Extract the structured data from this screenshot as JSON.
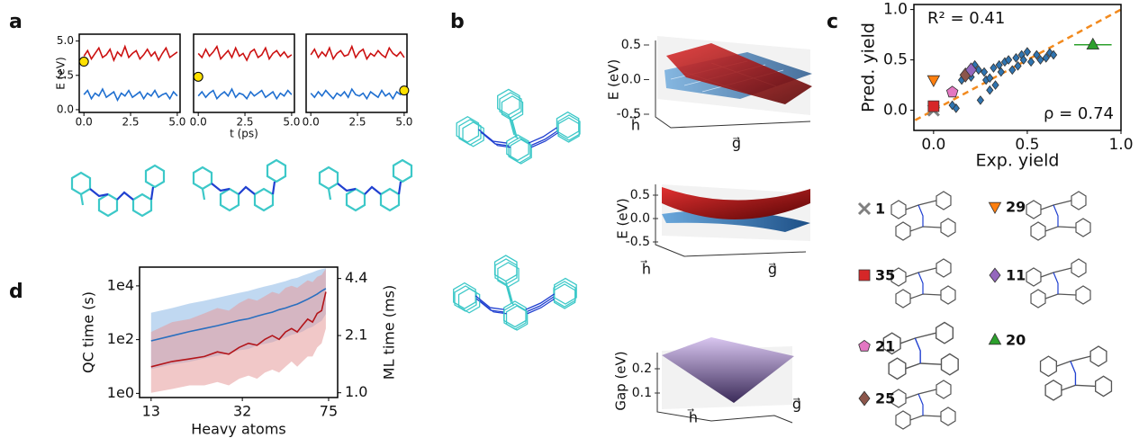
{
  "panel_labels": [
    "a",
    "b",
    "c",
    "d"
  ],
  "chart_data": [
    {
      "type": "line",
      "ylabel": "E (eV)",
      "x": [
        0,
        0.2,
        0.4,
        0.6,
        0.8,
        1,
        1.2,
        1.4,
        1.6,
        1.8,
        2,
        2.2,
        2.4,
        2.6,
        2.8,
        3,
        3.2,
        3.4,
        3.6,
        3.8,
        4,
        4.2,
        4.4,
        4.6,
        4.8,
        5
      ],
      "xlim": [
        -0.25,
        5.15
      ],
      "xticks": [
        {
          "value": 0,
          "label": "0.0"
        },
        2.5,
        {
          "value": 5,
          "label": "5.0"
        }
      ],
      "ylim": [
        -0.2,
        5.5
      ],
      "yticks": [
        {
          "value": 0,
          "label": "0.0"
        },
        2.5,
        {
          "value": 5,
          "label": "5.0"
        }
      ],
      "series": [
        {
          "color": "#cc1111",
          "values": [
            3.9,
            4.3,
            3.7,
            4.1,
            4.5,
            3.8,
            4.0,
            4.4,
            3.6,
            4.2,
            3.9,
            4.6,
            3.8,
            4.1,
            4.3,
            3.7,
            4.0,
            4.4,
            3.9,
            4.2,
            3.6,
            4.1,
            4.5,
            3.8,
            4.0,
            4.2
          ]
        },
        {
          "color": "#1f6fd0",
          "values": [
            1.1,
            1.4,
            0.8,
            1.2,
            1.0,
            1.5,
            0.9,
            1.1,
            1.3,
            0.7,
            1.2,
            1.0,
            1.4,
            0.9,
            1.1,
            1.3,
            0.8,
            1.2,
            1.0,
            1.4,
            0.9,
            1.1,
            1.2,
            0.8,
            1.3,
            1.0
          ]
        }
      ],
      "highlight": {
        "x": 0,
        "y": 3.5,
        "color": "#ffe100"
      }
    },
    {
      "type": "line",
      "xlabel": "t (ps)",
      "x": [
        0,
        0.2,
        0.4,
        0.6,
        0.8,
        1,
        1.2,
        1.4,
        1.6,
        1.8,
        2,
        2.2,
        2.4,
        2.6,
        2.8,
        3,
        3.2,
        3.4,
        3.6,
        3.8,
        4,
        4.2,
        4.4,
        4.6,
        4.8,
        5
      ],
      "xlim": [
        -0.25,
        5.15
      ],
      "xticks": [
        {
          "value": 0,
          "label": "0.0"
        },
        2.5,
        {
          "value": 5,
          "label": "5.0"
        }
      ],
      "ylim": [
        -0.2,
        5.5
      ],
      "series": [
        {
          "color": "#cc1111",
          "values": [
            4.1,
            3.8,
            4.4,
            3.9,
            4.2,
            4.6,
            3.7,
            4.0,
            4.3,
            3.8,
            4.5,
            3.9,
            4.1,
            3.6,
            4.2,
            4.4,
            3.8,
            4.0,
            4.5,
            3.7,
            4.1,
            4.3,
            3.9,
            4.2,
            3.8,
            4.0
          ]
        },
        {
          "color": "#1f6fd0",
          "values": [
            1.0,
            1.3,
            0.9,
            1.2,
            1.4,
            0.8,
            1.1,
            1.3,
            1.0,
            1.5,
            0.9,
            1.2,
            1.1,
            0.8,
            1.3,
            1.0,
            1.2,
            1.4,
            0.9,
            1.1,
            1.3,
            0.8,
            1.2,
            1.0,
            1.4,
            1.1
          ]
        }
      ],
      "highlight": {
        "x": 0,
        "y": 2.4,
        "color": "#ffe100"
      }
    },
    {
      "type": "line",
      "x": [
        0,
        0.2,
        0.4,
        0.6,
        0.8,
        1,
        1.2,
        1.4,
        1.6,
        1.8,
        2,
        2.2,
        2.4,
        2.6,
        2.8,
        3,
        3.2,
        3.4,
        3.6,
        3.8,
        4,
        4.2,
        4.4,
        4.6,
        4.8,
        5
      ],
      "xlim": [
        -0.25,
        5.15
      ],
      "xticks": [
        {
          "value": 0,
          "label": "0.0"
        },
        2.5,
        {
          "value": 5,
          "label": "5.0"
        }
      ],
      "ylim": [
        -0.2,
        5.5
      ],
      "series": [
        {
          "color": "#cc1111",
          "values": [
            4.0,
            4.4,
            3.8,
            4.2,
            3.9,
            4.5,
            3.7,
            4.1,
            4.3,
            3.9,
            4.0,
            4.6,
            3.8,
            4.2,
            4.4,
            3.7,
            4.1,
            3.9,
            4.3,
            4.0,
            3.8,
            4.5,
            4.1,
            3.9,
            4.2,
            3.8
          ]
        },
        {
          "color": "#1f6fd0",
          "values": [
            1.2,
            0.9,
            1.3,
            1.0,
            1.4,
            1.1,
            0.8,
            1.2,
            1.0,
            1.3,
            0.9,
            1.5,
            1.1,
            1.0,
            1.2,
            0.8,
            1.3,
            1.1,
            0.9,
            1.4,
            1.0,
            1.2,
            0.8,
            1.3,
            1.1,
            1.4
          ]
        }
      ],
      "highlight": {
        "x": 5,
        "y": 1.4,
        "color": "#ffe100"
      }
    },
    {
      "type": "surface",
      "ylabel": "E (eV)",
      "ylim": [
        -0.6,
        0.6
      ],
      "yticks": [
        0.5,
        {
          "value": 0,
          "label": "0.0"
        },
        -0.5
      ],
      "xlabel": "h⃗",
      "zlabel": "g⃗"
    },
    {
      "type": "surface",
      "ylabel": "E (eV)",
      "ylim": [
        -0.6,
        0.6
      ],
      "yticks": [
        0.5,
        {
          "value": 0,
          "label": "0.0"
        },
        -0.5
      ],
      "xlabel": "h⃗",
      "zlabel": "g⃗"
    },
    {
      "type": "surface",
      "ylabel": "Gap (eV)",
      "ylim": [
        0.05,
        0.25
      ],
      "yticks": [
        0.2,
        0.1
      ],
      "xlabel": "h⃗",
      "zlabel": "g⃗"
    },
    {
      "type": "scatter",
      "xlabel": "Exp. yield",
      "ylabel": "Pred. yield",
      "xlim": [
        -0.105,
        1.0
      ],
      "ylim": [
        -0.2,
        1.05
      ],
      "xticks": [
        {
          "value": 0,
          "label": "0.0"
        },
        0.5,
        {
          "value": 1,
          "label": "1.0"
        }
      ],
      "yticks": [
        {
          "value": 0,
          "label": "0.0"
        },
        0.5,
        {
          "value": 1,
          "label": "1.0"
        }
      ],
      "diagonal": {
        "color": "#f28a1e"
      },
      "annotations": [
        "R² = 0.41",
        "ρ = 0.74"
      ],
      "points": {
        "color": "#2f74b0",
        "x": [
          0.12,
          0.15,
          0.18,
          0.2,
          0.22,
          0.24,
          0.25,
          0.27,
          0.28,
          0.3,
          0.32,
          0.33,
          0.35,
          0.36,
          0.38,
          0.4,
          0.42,
          0.44,
          0.45,
          0.47,
          0.48,
          0.5,
          0.52,
          0.55,
          0.57,
          0.6,
          0.62,
          0.64,
          0.1,
          0.3
        ],
        "y": [
          0.02,
          0.3,
          0.35,
          0.33,
          0.45,
          0.4,
          0.1,
          0.38,
          0.3,
          0.32,
          0.42,
          0.25,
          0.45,
          0.38,
          0.48,
          0.5,
          0.4,
          0.52,
          0.44,
          0.55,
          0.5,
          0.58,
          0.48,
          0.55,
          0.5,
          0.52,
          0.57,
          0.55,
          0.05,
          0.2
        ]
      },
      "series": [
        {
          "name": "1",
          "marker": "x",
          "color": "#808080",
          "x": [
            0
          ],
          "y": [
            0
          ]
        },
        {
          "name": "35",
          "marker": "square",
          "color": "#d62728",
          "x": [
            0
          ],
          "y": [
            0.04
          ]
        },
        {
          "name": "21",
          "marker": "pentagon",
          "color": "#e377c2",
          "x": [
            0.1
          ],
          "y": [
            0.18
          ]
        },
        {
          "name": "25",
          "marker": "diamond",
          "color": "#8c564b",
          "x": [
            0.17
          ],
          "y": [
            0.35
          ]
        },
        {
          "name": "29",
          "marker": "triangle-down",
          "color": "#ff7f0e",
          "x": [
            0
          ],
          "y": [
            0.3
          ]
        },
        {
          "name": "11",
          "marker": "diamond",
          "color": "#9467bd",
          "x": [
            0.2
          ],
          "y": [
            0.4
          ]
        },
        {
          "name": "20",
          "marker": "triangle-up",
          "color": "#2ca02c",
          "x": [
            0.85
          ],
          "y": [
            0.65
          ],
          "xerr": [
            0.1
          ]
        }
      ]
    },
    {
      "type": "line",
      "xlabel": "Heavy atoms",
      "ylabel": "QC time (s)",
      "y2label": "ML time (ms)",
      "xscale": "log",
      "yscale": "log",
      "y2scale": "log",
      "x": [
        13,
        16,
        19,
        22,
        25,
        28,
        31,
        34,
        37,
        40,
        43,
        46,
        49,
        52,
        55,
        58,
        61,
        64,
        67,
        70,
        73
      ],
      "xlim": [
        11.6,
        82
      ],
      "xticks": [
        13,
        32,
        75
      ],
      "ylim": [
        0.7,
        50000
      ],
      "yticks": [
        {
          "value": 1,
          "label": "1e0"
        },
        {
          "value": 100,
          "label": "1e2"
        },
        {
          "value": 10000,
          "label": "1e4"
        }
      ],
      "y2lim": [
        0.94,
        5.1
      ],
      "y2ticks": [
        {
          "value": 1,
          "label": "1.0"
        },
        2.1,
        4.4
      ],
      "series": [
        {
          "color": "#2a6fbf",
          "band_color": "#8db8e6",
          "values": [
            90,
            140,
            200,
            260,
            330,
            420,
            520,
            600,
            750,
            900,
            1050,
            1300,
            1500,
            1800,
            2100,
            2600,
            3200,
            4000,
            5000,
            6500,
            8000
          ],
          "lower": [
            8,
            12,
            15,
            20,
            25,
            30,
            40,
            45,
            60,
            70,
            80,
            100,
            120,
            150,
            170,
            200,
            260,
            300,
            400,
            500,
            900
          ],
          "upper": [
            1000,
            1500,
            2200,
            2800,
            3600,
            4500,
            5500,
            6500,
            8000,
            9500,
            11000,
            13000,
            15000,
            18000,
            20000,
            24000,
            28000,
            32000,
            38000,
            42000,
            45000
          ]
        },
        {
          "axis": "y2",
          "color": "#b3151a",
          "band_color": "#e59a9a",
          "values": [
            1.4,
            1.5,
            1.55,
            1.6,
            1.7,
            1.65,
            1.8,
            1.9,
            1.85,
            2.0,
            2.1,
            2.0,
            2.2,
            2.3,
            2.2,
            2.4,
            2.6,
            2.5,
            2.8,
            2.9,
            3.7
          ],
          "lower": [
            1.0,
            1.05,
            1.1,
            1.1,
            1.15,
            1.1,
            1.2,
            1.25,
            1.2,
            1.3,
            1.35,
            1.3,
            1.4,
            1.5,
            1.4,
            1.5,
            1.6,
            1.6,
            1.8,
            1.9,
            2.3
          ],
          "upper": [
            2.2,
            2.5,
            2.6,
            2.8,
            3.0,
            2.9,
            3.2,
            3.4,
            3.3,
            3.5,
            3.7,
            3.6,
            3.9,
            4.0,
            3.9,
            4.1,
            4.3,
            4.2,
            4.5,
            4.6,
            5.0
          ]
        }
      ]
    }
  ]
}
